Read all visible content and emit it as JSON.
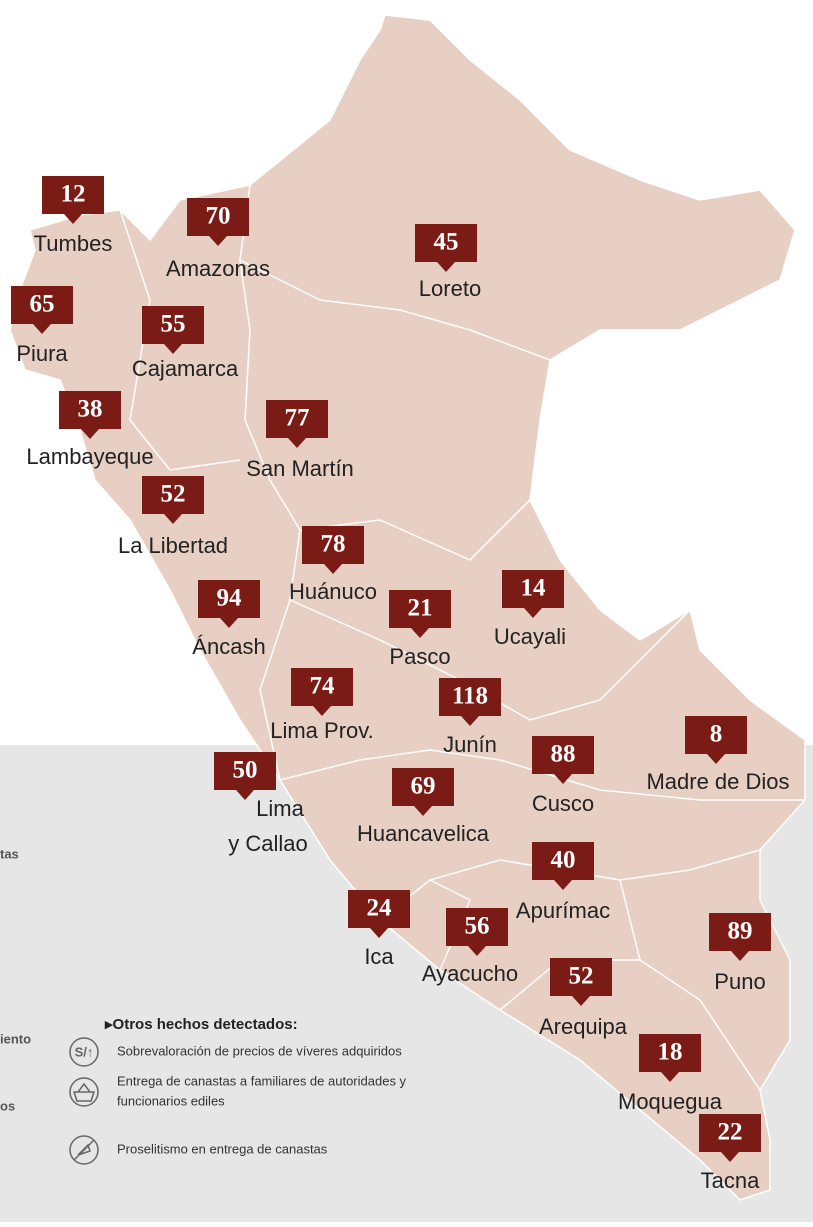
{
  "regions": [
    {
      "name": "Tumbes",
      "value": 12
    },
    {
      "name": "Amazonas",
      "value": 70
    },
    {
      "name": "Loreto",
      "value": 45
    },
    {
      "name": "Piura",
      "value": 65
    },
    {
      "name": "Cajamarca",
      "value": 55
    },
    {
      "name": "Lambayeque",
      "value": 38
    },
    {
      "name": "San Martín",
      "value": 77
    },
    {
      "name": "La Libertad",
      "value": 52
    },
    {
      "name": "Huánuco",
      "value": 78
    },
    {
      "name": "Áncash",
      "value": 94
    },
    {
      "name": "Pasco",
      "value": 21
    },
    {
      "name": "Ucayali",
      "value": 14
    },
    {
      "name": "Lima Prov.",
      "value": 74
    },
    {
      "name": "Junín",
      "value": 118
    },
    {
      "name": "Madre de Dios",
      "value": 8
    },
    {
      "name": "Cusco",
      "value": 88
    },
    {
      "name": [
        "Lima",
        "y Callao"
      ],
      "value": 50
    },
    {
      "name": "Huancavelica",
      "value": 69
    },
    {
      "name": "Apurímac",
      "value": 40
    },
    {
      "name": "Ica",
      "value": 24
    },
    {
      "name": "Ayacucho",
      "value": 56
    },
    {
      "name": "Puno",
      "value": 89
    },
    {
      "name": "Arequipa",
      "value": 52
    },
    {
      "name": "Moquegua",
      "value": 18
    },
    {
      "name": "Tacna",
      "value": 22
    }
  ],
  "legend": {
    "title": "▸Otros hechos detectados:",
    "items": [
      [
        "Sobrevaloración de precios de víveres adquiridos"
      ],
      [
        "Entrega de canastas a familiares de autoridades y",
        "funcionarios ediles"
      ],
      [
        "Proselitismo en entrega de canastas"
      ]
    ],
    "fragments": [
      "tas",
      "iento",
      "os"
    ]
  }
}
